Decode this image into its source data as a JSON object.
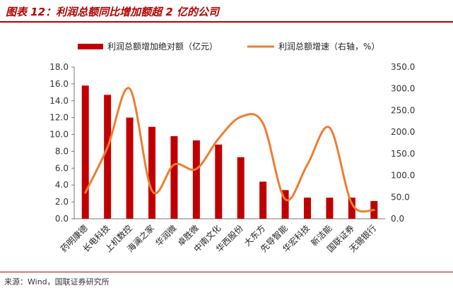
{
  "title": "图表 12：利润总额同比增加额超 2 亿的公司",
  "source": "来源：Wind，国联证券研究所",
  "colors": {
    "bar": "#c00000",
    "line": "#ed7d31",
    "accent": "#b30000"
  },
  "chart_data": {
    "type": "bar",
    "categories": [
      "药明康德",
      "长电科技",
      "上机数控",
      "海澜之家",
      "华润微",
      "卓胜微",
      "中南文化",
      "华西股份",
      "大东方",
      "先导智能",
      "华宏科技",
      "新洁能",
      "国联证券",
      "无锡银行"
    ],
    "series": [
      {
        "name": "利润总额增加绝对额（亿元）",
        "type": "bar",
        "axis": "left",
        "values": [
          15.8,
          14.7,
          12.0,
          10.9,
          9.8,
          9.3,
          8.8,
          7.3,
          4.4,
          3.4,
          2.5,
          2.5,
          2.5,
          2.1
        ]
      },
      {
        "name": "利润总额增速（右轴，%）",
        "type": "line",
        "axis": "right",
        "values": [
          60,
          165,
          300,
          65,
          125,
          115,
          185,
          235,
          220,
          45,
          125,
          210,
          35,
          20
        ]
      }
    ],
    "y_left": {
      "min": 0,
      "max": 18,
      "step": 2,
      "ticks": [
        "0.0",
        "2.0",
        "4.0",
        "6.0",
        "8.0",
        "10.0",
        "12.0",
        "14.0",
        "16.0",
        "18.0"
      ]
    },
    "y_right": {
      "min": 0,
      "max": 350,
      "step": 50,
      "ticks": [
        "0.0",
        "50.0",
        "100.0",
        "150.0",
        "200.0",
        "250.0",
        "300.0",
        "350.0"
      ]
    },
    "legend_position": "top"
  }
}
